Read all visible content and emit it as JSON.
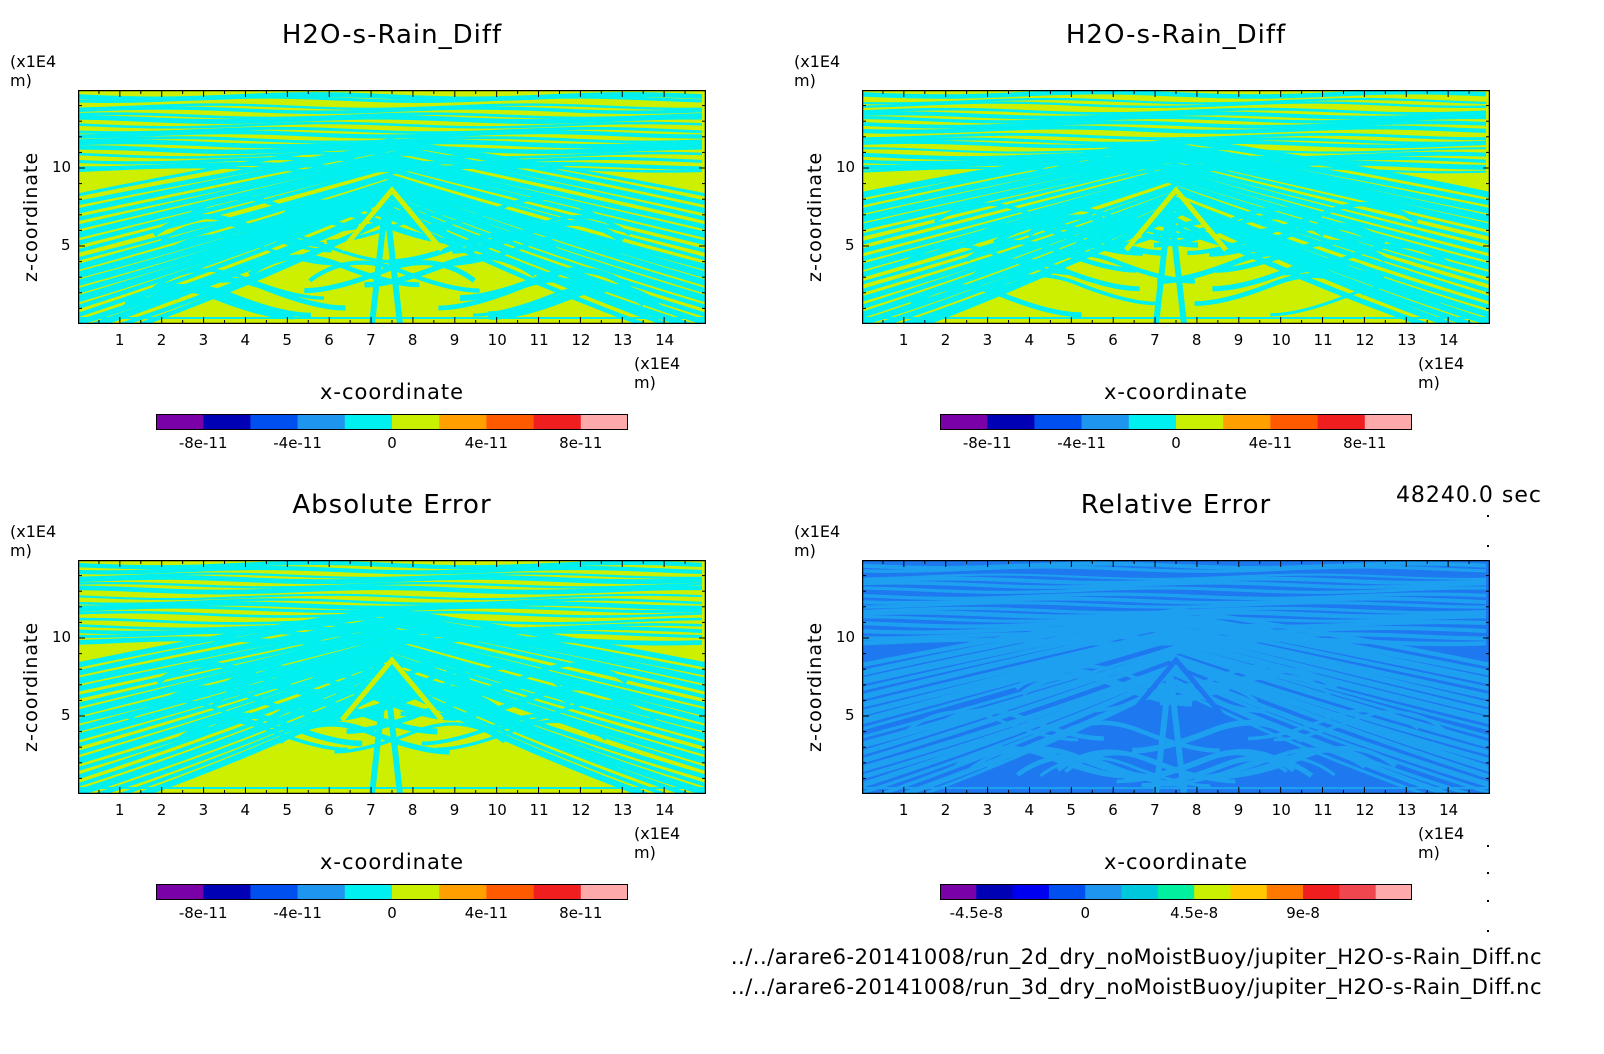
{
  "panels": [
    {
      "title": "H2O-s-Rain_Diff",
      "y_unit": "(x1E4 m)",
      "x_unit": "(x1E4 m)",
      "xlabel": "x-coordinate",
      "ylabel": "z-coordinate",
      "colorbar_labels": [
        "-8e-11",
        "-4e-11",
        "0",
        "4e-11",
        "8e-11"
      ],
      "palette": "alt"
    },
    {
      "title": "H2O-s-Rain_Diff",
      "y_unit": "(x1E4 m)",
      "x_unit": "(x1E4 m)",
      "xlabel": "x-coordinate",
      "ylabel": "z-coordinate",
      "colorbar_labels": [
        "-8e-11",
        "-4e-11",
        "0",
        "4e-11",
        "8e-11"
      ],
      "palette": "alt"
    },
    {
      "title": "Absolute Error",
      "y_unit": "(x1E4 m)",
      "x_unit": "(x1E4 m)",
      "xlabel": "x-coordinate",
      "ylabel": "z-coordinate",
      "colorbar_labels": [
        "-8e-11",
        "-4e-11",
        "0",
        "4e-11",
        "8e-11"
      ],
      "palette": "alt"
    },
    {
      "title": "Relative Error",
      "y_unit": "(x1E4 m)",
      "x_unit": "(x1E4 m)",
      "xlabel": "x-coordinate",
      "ylabel": "z-coordinate",
      "colorbar_labels": [
        "-4.5e-8",
        "0",
        "4.5e-8",
        "9e-8"
      ],
      "palette": "blue"
    }
  ],
  "x_ticks": [
    "1",
    "2",
    "3",
    "4",
    "5",
    "6",
    "7",
    "8",
    "9",
    "10",
    "11",
    "12",
    "13",
    "14"
  ],
  "y_ticks": [
    "5",
    "10"
  ],
  "timestamp": "48240.0 sec",
  "files": [
    "../../arare6-20141008/run_2d_dry_noMoistBuoy/jupiter_H2O-s-Rain_Diff.nc",
    "../../arare6-20141008/run_3d_dry_noMoistBuoy/jupiter_H2O-s-Rain_Diff.nc"
  ],
  "colors": {
    "colorbar_10": [
      "#7a00a8",
      "#0000b4",
      "#0050f0",
      "#1e96f0",
      "#00f0f0",
      "#c8f000",
      "#ffa000",
      "#ff5a00",
      "#f01e1e",
      "#ffaaaa"
    ],
    "colorbar_13": [
      "#7a00a8",
      "#0000b4",
      "#0000f0",
      "#0050f0",
      "#1e96f0",
      "#00c8dc",
      "#00f0a0",
      "#c8f000",
      "#ffc800",
      "#ff7800",
      "#f01e1e",
      "#f04650",
      "#ffaaaa"
    ],
    "field_yellow": "#cdf000",
    "field_cyan": "#00f0f0",
    "field_blue_dark": "#1e78f0",
    "field_blue_light": "#1ea0f0"
  },
  "chart_data": [
    {
      "type": "heatmap",
      "title": "H2O-s-Rain_Diff",
      "xlabel": "x-coordinate",
      "ylabel": "z-coordinate",
      "x_unit": "(x1E4 m)",
      "y_unit": "(x1E4 m)",
      "xlim": [
        0,
        15
      ],
      "ylim": [
        0,
        15
      ],
      "colorbar": [
        "-8e-11",
        "-4e-11",
        "0",
        "4e-11",
        "8e-11"
      ]
    },
    {
      "type": "heatmap",
      "title": "H2O-s-Rain_Diff",
      "xlabel": "x-coordinate",
      "ylabel": "z-coordinate",
      "x_unit": "(x1E4 m)",
      "y_unit": "(x1E4 m)",
      "xlim": [
        0,
        15
      ],
      "ylim": [
        0,
        15
      ],
      "colorbar": [
        "-8e-11",
        "-4e-11",
        "0",
        "4e-11",
        "8e-11"
      ]
    },
    {
      "type": "heatmap",
      "title": "Absolute Error",
      "xlabel": "x-coordinate",
      "ylabel": "z-coordinate",
      "x_unit": "(x1E4 m)",
      "y_unit": "(x1E4 m)",
      "xlim": [
        0,
        15
      ],
      "ylim": [
        0,
        15
      ],
      "colorbar": [
        "-8e-11",
        "-4e-11",
        "0",
        "4e-11",
        "8e-11"
      ]
    },
    {
      "type": "heatmap",
      "title": "Relative Error",
      "xlabel": "x-coordinate",
      "ylabel": "z-coordinate",
      "x_unit": "(x1E4 m)",
      "y_unit": "(x1E4 m)",
      "xlim": [
        0,
        15
      ],
      "ylim": [
        0,
        15
      ],
      "colorbar": [
        "-4.5e-8",
        "0",
        "4.5e-8",
        "9e-8"
      ]
    }
  ]
}
